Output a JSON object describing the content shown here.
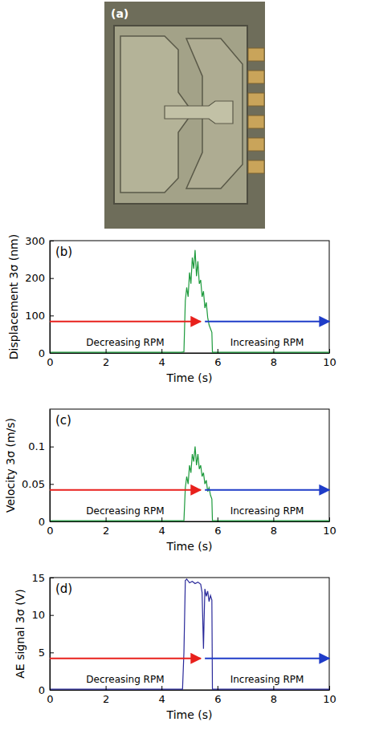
{
  "photo": {
    "label": "(a)"
  },
  "chart_data": [
    {
      "type": "line",
      "label": "(b)",
      "x_label": "Time (s)",
      "y_label": "Displacement 3σ (nm)",
      "color": "#1d9a3c",
      "x": [
        0,
        1,
        2,
        3,
        4,
        4.7,
        4.8,
        4.85,
        4.9,
        4.95,
        5.0,
        5.05,
        5.1,
        5.15,
        5.2,
        5.25,
        5.3,
        5.35,
        5.4,
        5.45,
        5.5,
        5.55,
        5.6,
        5.65,
        5.7,
        5.75,
        5.8,
        5.82,
        6,
        7,
        8,
        9,
        10
      ],
      "values": [
        2,
        2,
        2,
        2,
        2,
        2,
        3,
        140,
        175,
        150,
        215,
        185,
        255,
        225,
        275,
        205,
        245,
        185,
        195,
        150,
        165,
        120,
        135,
        95,
        75,
        65,
        55,
        2,
        2,
        2,
        2,
        2,
        2
      ],
      "xlim": [
        0,
        10
      ],
      "xticks": [
        0,
        2,
        4,
        6,
        8,
        10
      ],
      "ylim": [
        0,
        300
      ],
      "yticks": [
        0,
        100,
        200,
        300
      ],
      "annotations": [
        {
          "text": "Decreasing RPM",
          "color": "#e8201c",
          "x": [
            0,
            5.4
          ]
        },
        {
          "text": "Increasing RPM",
          "color": "#1f3cc8",
          "x": [
            5.55,
            10
          ]
        }
      ]
    },
    {
      "type": "line",
      "label": "(c)",
      "x_label": "Time (s)",
      "y_label": "Velocity 3σ (m/s)",
      "color": "#1d9a3c",
      "x": [
        0,
        1,
        2,
        3,
        4,
        4.7,
        4.8,
        4.85,
        4.9,
        4.95,
        5.0,
        5.05,
        5.1,
        5.15,
        5.2,
        5.25,
        5.3,
        5.35,
        5.4,
        5.45,
        5.5,
        5.55,
        5.6,
        5.65,
        5.7,
        5.75,
        5.8,
        5.82,
        6,
        7,
        8,
        9,
        10
      ],
      "values": [
        0.001,
        0.001,
        0.001,
        0.001,
        0.001,
        0.001,
        0.001,
        0.045,
        0.06,
        0.05,
        0.075,
        0.065,
        0.09,
        0.08,
        0.1,
        0.075,
        0.09,
        0.07,
        0.075,
        0.06,
        0.065,
        0.05,
        0.055,
        0.04,
        0.045,
        0.035,
        0.03,
        0.001,
        0.001,
        0.001,
        0.001,
        0.001,
        0.001
      ],
      "xlim": [
        0,
        10
      ],
      "xticks": [
        0,
        2,
        4,
        6,
        8,
        10
      ],
      "ylim": [
        0,
        0.15
      ],
      "yticks": [
        0,
        0.05,
        0.1
      ],
      "annotations": [
        {
          "text": "Decreasing RPM",
          "color": "#e8201c",
          "x": [
            0,
            5.4
          ]
        },
        {
          "text": "Increasing RPM",
          "color": "#1f3cc8",
          "x": [
            5.55,
            10
          ]
        }
      ]
    },
    {
      "type": "line",
      "label": "(d)",
      "x_label": "Time (s)",
      "y_label": "AE signal 3σ (V)",
      "color": "#2a2a9a",
      "x": [
        0,
        1,
        2,
        3,
        4,
        4.75,
        4.8,
        4.85,
        4.9,
        5.0,
        5.1,
        5.2,
        5.3,
        5.4,
        5.45,
        5.5,
        5.52,
        5.55,
        5.6,
        5.65,
        5.7,
        5.75,
        5.8,
        5.82,
        6,
        7,
        8,
        9,
        10
      ],
      "values": [
        0.1,
        0.1,
        0.1,
        0.1,
        0.1,
        0.1,
        5,
        14.6,
        14.8,
        14.3,
        14.5,
        14.2,
        14.4,
        14.1,
        13,
        5.5,
        9,
        13.5,
        12.5,
        13.2,
        11.8,
        12.6,
        12,
        0.1,
        0.1,
        0.1,
        0.1,
        0.1,
        0.1
      ],
      "xlim": [
        0,
        10
      ],
      "xticks": [
        0,
        2,
        4,
        6,
        8,
        10
      ],
      "ylim": [
        0,
        15
      ],
      "yticks": [
        0,
        5,
        10,
        15
      ],
      "annotations": [
        {
          "text": "Decreasing RPM",
          "color": "#e8201c",
          "x": [
            0,
            5.4
          ]
        },
        {
          "text": "Increasing RPM",
          "color": "#1f3cc8",
          "x": [
            5.55,
            10
          ]
        }
      ]
    }
  ]
}
